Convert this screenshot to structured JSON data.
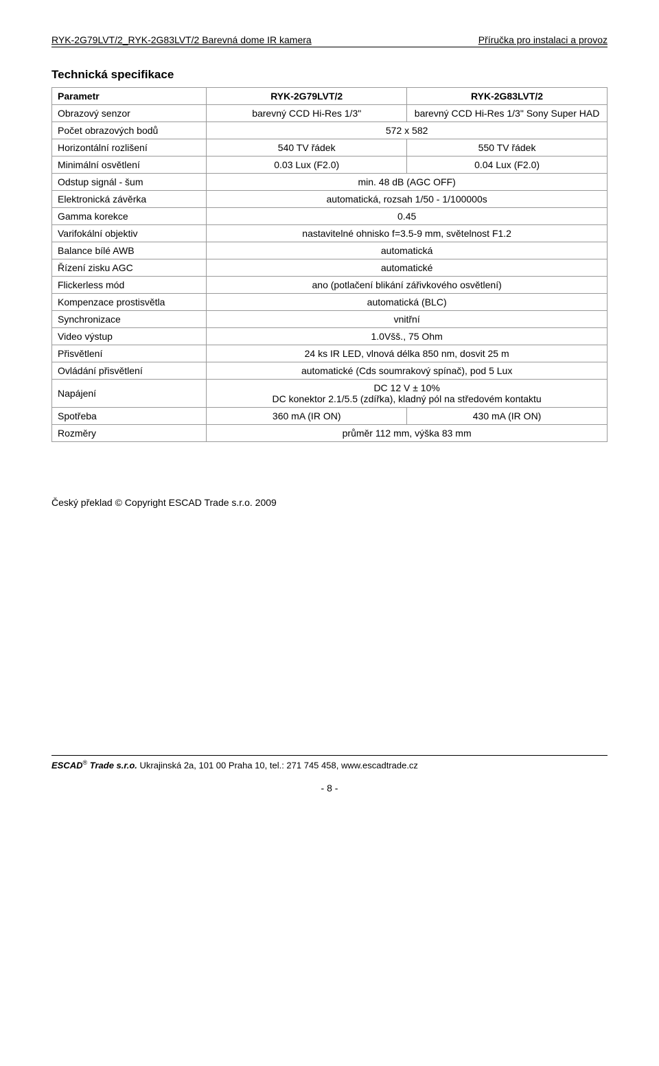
{
  "header": {
    "left": "RYK-2G79LVT/2_RYK-2G83LVT/2  Barevná dome IR kamera",
    "right": "Příručka pro instalaci a provoz"
  },
  "section_title": "Technická specifikace",
  "spec_table": {
    "header": {
      "param": "Parametr",
      "col1": "RYK-2G79LVT/2",
      "col2": "RYK-2G83LVT/2"
    },
    "rows": {
      "sensor": {
        "label": "Obrazový senzor",
        "v1": "barevný CCD Hi-Res 1/3\"",
        "v2": "barevný CCD Hi-Res 1/3\" Sony Super HAD"
      },
      "pixels": {
        "label": "Počet obrazových bodů",
        "value": "572 x 582"
      },
      "hres": {
        "label": "Horizontální rozlišení",
        "v1": "540 TV řádek",
        "v2": "550 TV řádek"
      },
      "minlight": {
        "label": "Minimální osvětlení",
        "v1": "0.03 Lux (F2.0)",
        "v2": "0.04 Lux (F2.0)"
      },
      "snr": {
        "label": "Odstup signál - šum",
        "value": "min. 48 dB (AGC OFF)"
      },
      "shutter": {
        "label": "Elektronická závěrka",
        "value": "automatická, rozsah 1/50 - 1/100000s"
      },
      "gamma": {
        "label": "Gamma korekce",
        "value": "0.45"
      },
      "varifocal": {
        "label": "Varifokální objektiv",
        "value": "nastavitelné ohnisko f=3.5-9 mm, světelnost F1.2"
      },
      "awb": {
        "label": "Balance bílé AWB",
        "value": "automatická"
      },
      "agc": {
        "label": "Řízení zisku AGC",
        "value": "automatické"
      },
      "flickerless": {
        "label": "Flickerless mód",
        "value": "ano (potlačení blikání zářivkového osvětlení)"
      },
      "blc": {
        "label": "Kompenzace prostisvětla",
        "value": "automatická  (BLC)"
      },
      "sync": {
        "label": "Synchronizace",
        "value": "vnitřní"
      },
      "video": {
        "label": "Video výstup",
        "value": "1.0Všš., 75 Ohm"
      },
      "irlight": {
        "label": "Přisvětlení",
        "value": "24 ks IR LED, vlnová délka 850 nm, dosvit 25 m"
      },
      "ircontrol": {
        "label": "Ovládání přisvětlení",
        "value": "automatické (Cds soumrakový spínač), pod 5 Lux"
      },
      "power": {
        "label": "Napájení",
        "value": "DC 12 V ± 10%\nDC konektor 2.1/5.5 (zdířka), kladný pól na středovém kontaktu"
      },
      "consumption": {
        "label": "Spotřeba",
        "v1": "360 mA (IR ON)",
        "v2": "430 mA (IR ON)"
      },
      "dimensions": {
        "label": "Rozměry",
        "value": "průměr 112 mm, výška 83 mm"
      }
    }
  },
  "copyright": "Český překlad © Copyright ESCAD Trade s.r.o. 2009",
  "footer": {
    "company_bold": "ESCAD",
    "sup": "®",
    "company_rest": " Trade s.r.o.",
    "address": "  Ukrajinská 2a, 101 00 Praha 10, tel.: 271 745 458, www.escadtrade.cz",
    "page": "- 8 -"
  }
}
